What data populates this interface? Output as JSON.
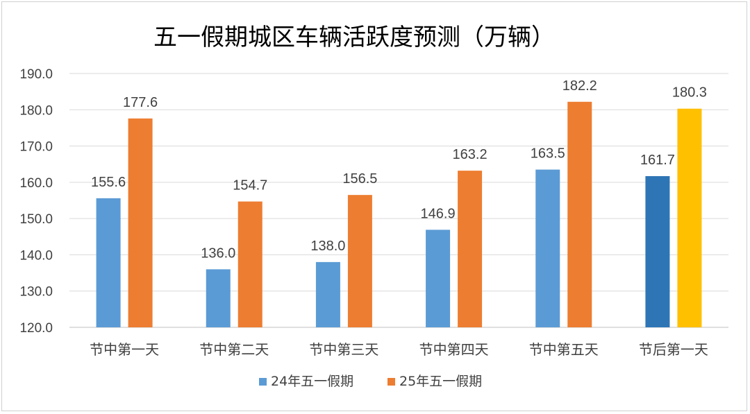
{
  "chart_data": {
    "type": "bar",
    "title": "五一假期城区车辆活跃度预测（万辆）",
    "categories": [
      "节中第一天",
      "节中第二天",
      "节中第三天",
      "节中第四天",
      "节中第五天",
      "节后第一天"
    ],
    "series": [
      {
        "name": "24年五一假期",
        "color": "#5B9BD5",
        "values": [
          155.6,
          136.0,
          138.0,
          146.9,
          163.5,
          161.7
        ],
        "labels": [
          "155.6",
          "136.0",
          "138.0",
          "146.9",
          "163.5",
          "161.7"
        ],
        "highlight": {
          "index": 5,
          "color": "#2E75B6"
        }
      },
      {
        "name": "25年五一假期",
        "color": "#ED7D31",
        "values": [
          177.6,
          154.7,
          156.5,
          163.2,
          182.2,
          180.3
        ],
        "labels": [
          "177.6",
          "154.7",
          "156.5",
          "163.2",
          "182.2",
          "180.3"
        ],
        "highlight": {
          "index": 5,
          "color": "#FFC000"
        }
      }
    ],
    "ylim": [
      120,
      190
    ],
    "yticks": [
      120,
      130,
      140,
      150,
      160,
      170,
      180,
      190
    ],
    "ytick_labels": [
      "120.0",
      "130.0",
      "140.0",
      "150.0",
      "160.0",
      "170.0",
      "180.0",
      "190.0"
    ],
    "grid": true,
    "legend_position": "bottom",
    "gridline_color": "#d9d9d9",
    "axis_color": "#bfbfbf"
  }
}
